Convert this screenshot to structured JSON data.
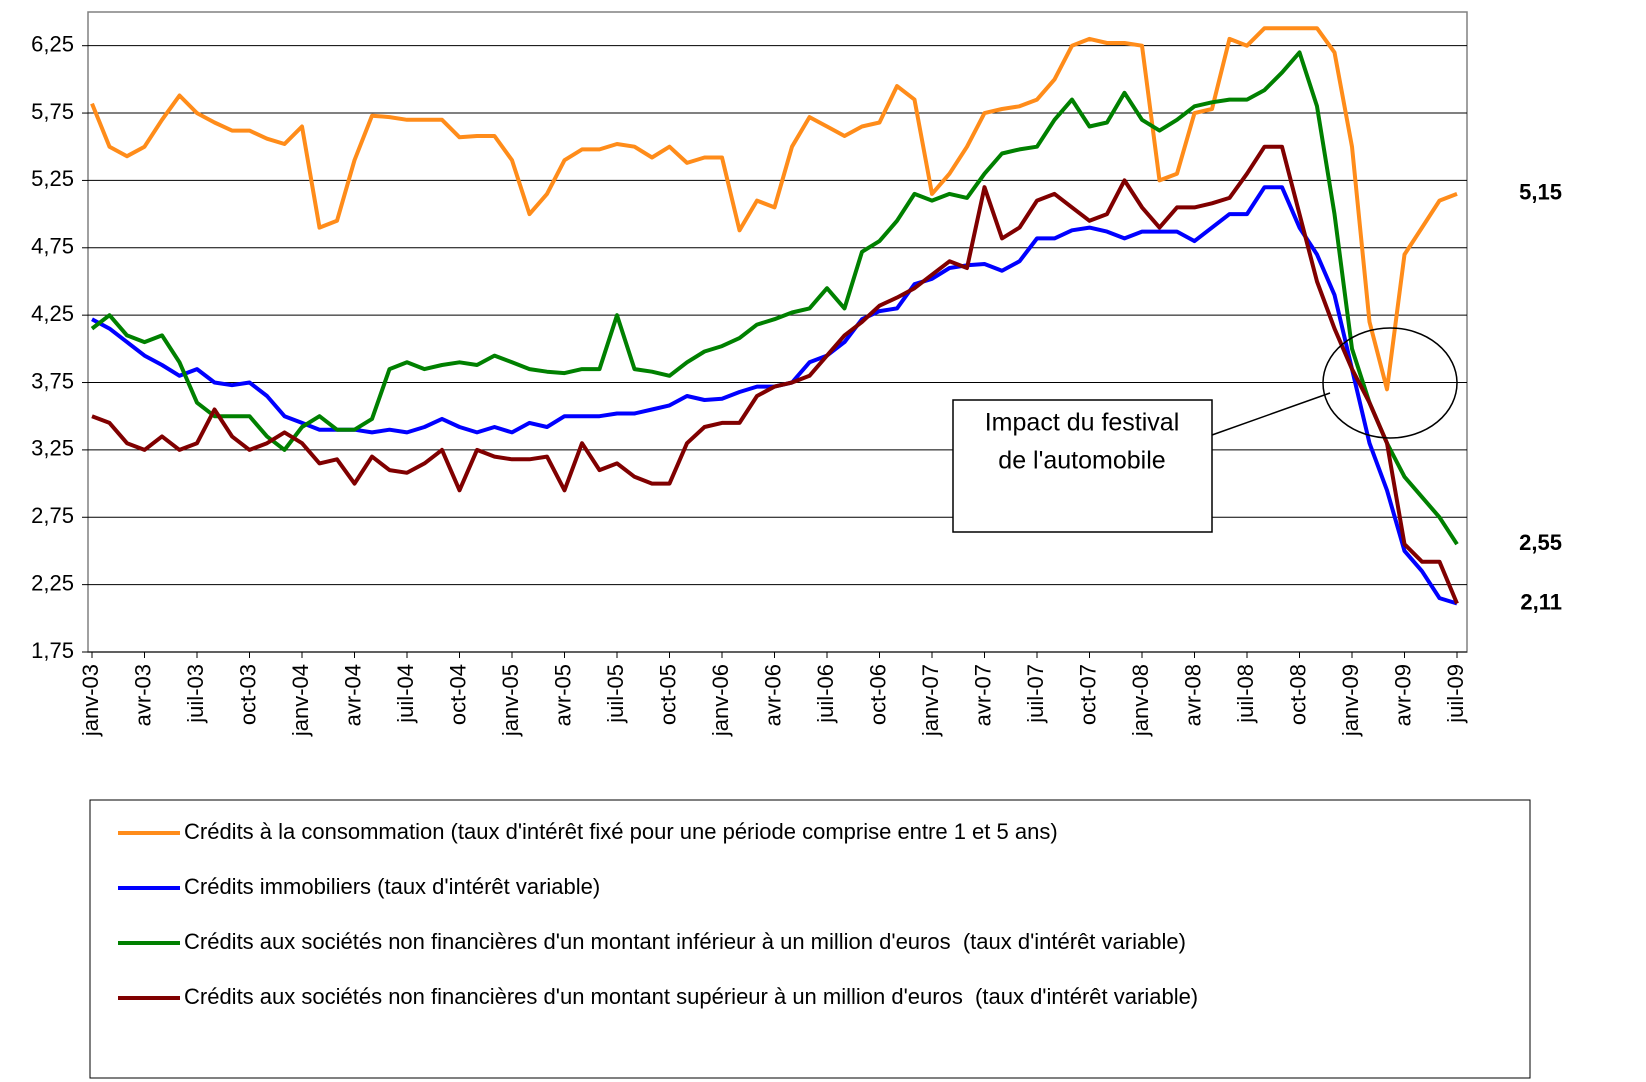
{
  "chart_data": {
    "type": "line",
    "categories": [
      "janv-03",
      null,
      null,
      "avr-03",
      null,
      null,
      "juil-03",
      null,
      null,
      "oct-03",
      null,
      null,
      "janv-04",
      null,
      null,
      "avr-04",
      null,
      null,
      "juil-04",
      null,
      null,
      "oct-04",
      null,
      null,
      "janv-05",
      null,
      null,
      "avr-05",
      null,
      null,
      "juil-05",
      null,
      null,
      "oct-05",
      null,
      null,
      "janv-06",
      null,
      null,
      "avr-06",
      null,
      null,
      "juil-06",
      null,
      null,
      "oct-06",
      null,
      null,
      "janv-07",
      null,
      null,
      "avr-07",
      null,
      null,
      "juil-07",
      null,
      null,
      "oct-07",
      null,
      null,
      "janv-08",
      null,
      null,
      "avr-08",
      null,
      null,
      "juil-08",
      null,
      null,
      "oct-08",
      null,
      null,
      "janv-09",
      null,
      null,
      "avr-09",
      null,
      null,
      "juil-09"
    ],
    "ylim": [
      1.75,
      6.5
    ],
    "yticks": [
      {
        "value": 1.75,
        "label": "1,75"
      },
      {
        "value": 2.25,
        "label": "2,25"
      },
      {
        "value": 2.75,
        "label": "2,75"
      },
      {
        "value": 3.25,
        "label": "3,25"
      },
      {
        "value": 3.75,
        "label": "3,75"
      },
      {
        "value": 4.25,
        "label": "4,25"
      },
      {
        "value": 4.75,
        "label": "4,75"
      },
      {
        "value": 5.25,
        "label": "5,25"
      },
      {
        "value": 5.75,
        "label": "5,75"
      },
      {
        "value": 6.25,
        "label": "6,25"
      }
    ],
    "grid": true,
    "legend": "bottom",
    "annotation": [
      "Impact du festival",
      "de l'automobile"
    ],
    "series": [
      {
        "name": "Crédits à la consommation (taux d'intérêt fixé pour une période comprise entre 1 et 5 ans)",
        "color": "#ff8c1a",
        "values": [
          5.82,
          5.5,
          5.43,
          5.5,
          5.7,
          5.88,
          5.75,
          5.68,
          5.62,
          5.62,
          5.56,
          5.52,
          5.65,
          4.9,
          4.95,
          5.4,
          5.73,
          5.72,
          5.7,
          5.7,
          5.7,
          5.57,
          5.58,
          5.58,
          5.4,
          5.0,
          5.15,
          5.4,
          5.48,
          5.48,
          5.52,
          5.5,
          5.42,
          5.5,
          5.38,
          5.42,
          5.42,
          4.88,
          5.1,
          5.05,
          5.5,
          5.72,
          5.65,
          5.58,
          5.65,
          5.68,
          5.95,
          5.85,
          5.15,
          5.3,
          5.5,
          5.75,
          5.78,
          5.8,
          5.85,
          6.0,
          6.25,
          6.3,
          6.27,
          6.27,
          6.25,
          5.25,
          5.3,
          5.75,
          5.78,
          6.3,
          6.25,
          6.38,
          6.38,
          6.38,
          6.38,
          6.2,
          5.5,
          4.2,
          3.7,
          4.7,
          4.9,
          5.1,
          5.15
        ],
        "value_labels": [
          null,
          null,
          null,
          null,
          null,
          null,
          null,
          null,
          null,
          null,
          null,
          null,
          null,
          null,
          null,
          null,
          null,
          null,
          null,
          null,
          null,
          null,
          null,
          null,
          null,
          null,
          null,
          null,
          null,
          null,
          null,
          null,
          null,
          null,
          null,
          null,
          null,
          null,
          null,
          null,
          null,
          null,
          null,
          null,
          null,
          null,
          null,
          null,
          null,
          null,
          null,
          null,
          null,
          null,
          null,
          null,
          null,
          null,
          null,
          null,
          null,
          null,
          null,
          null,
          null,
          null,
          null,
          null,
          null,
          null,
          null,
          null,
          null,
          null,
          null,
          null,
          null,
          null,
          "5,15"
        ]
      },
      {
        "name": "Crédits immobiliers (taux d'intérêt variable)",
        "color": "#0000ff",
        "values": [
          4.22,
          4.15,
          4.05,
          3.95,
          3.88,
          3.8,
          3.85,
          3.75,
          3.73,
          3.75,
          3.65,
          3.5,
          3.45,
          3.4,
          3.4,
          3.4,
          3.38,
          3.4,
          3.38,
          3.42,
          3.48,
          3.42,
          3.38,
          3.42,
          3.38,
          3.45,
          3.42,
          3.5,
          3.5,
          3.5,
          3.52,
          3.52,
          3.55,
          3.58,
          3.65,
          3.62,
          3.63,
          3.68,
          3.72,
          3.72,
          3.75,
          3.9,
          3.95,
          4.05,
          4.22,
          4.28,
          4.3,
          4.48,
          4.52,
          4.6,
          4.62,
          4.63,
          4.58,
          4.65,
          4.82,
          4.82,
          4.88,
          4.9,
          4.87,
          4.82,
          4.87,
          4.87,
          4.87,
          4.8,
          4.9,
          5.0,
          5.0,
          5.2,
          5.2,
          4.9,
          4.7,
          4.4,
          3.85,
          3.3,
          2.95,
          2.5,
          2.35,
          2.15,
          2.11
        ],
        "value_labels": [
          null,
          null,
          null,
          null,
          null,
          null,
          null,
          null,
          null,
          null,
          null,
          null,
          null,
          null,
          null,
          null,
          null,
          null,
          null,
          null,
          null,
          null,
          null,
          null,
          null,
          null,
          null,
          null,
          null,
          null,
          null,
          null,
          null,
          null,
          null,
          null,
          null,
          null,
          null,
          null,
          null,
          null,
          null,
          null,
          null,
          null,
          null,
          null,
          null,
          null,
          null,
          null,
          null,
          null,
          null,
          null,
          null,
          null,
          null,
          null,
          null,
          null,
          null,
          null,
          null,
          null,
          null,
          null,
          null,
          null,
          null,
          null,
          null,
          null,
          null,
          null,
          null,
          null,
          "2,11"
        ]
      },
      {
        "name": "Crédits aux sociétés non financières d'un montant inférieur à un million d'euros  (taux d'intérêt variable)",
        "color": "#008000",
        "values": [
          4.15,
          4.25,
          4.1,
          4.05,
          4.1,
          3.9,
          3.6,
          3.5,
          3.5,
          3.5,
          3.35,
          3.25,
          3.42,
          3.5,
          3.4,
          3.4,
          3.48,
          3.85,
          3.9,
          3.85,
          3.88,
          3.9,
          3.88,
          3.95,
          3.9,
          3.85,
          3.83,
          3.82,
          3.85,
          3.85,
          4.25,
          3.85,
          3.83,
          3.8,
          3.9,
          3.98,
          4.02,
          4.08,
          4.18,
          4.22,
          4.27,
          4.3,
          4.45,
          4.3,
          4.72,
          4.8,
          4.95,
          5.15,
          5.1,
          5.15,
          5.12,
          5.3,
          5.45,
          5.48,
          5.5,
          5.7,
          5.85,
          5.65,
          5.68,
          5.9,
          5.7,
          5.62,
          5.7,
          5.8,
          5.83,
          5.85,
          5.85,
          5.92,
          6.05,
          6.2,
          5.8,
          5.0,
          4.0,
          3.6,
          3.3,
          3.05,
          2.9,
          2.75,
          2.55
        ],
        "value_labels": [
          null,
          null,
          null,
          null,
          null,
          null,
          null,
          null,
          null,
          null,
          null,
          null,
          null,
          null,
          null,
          null,
          null,
          null,
          null,
          null,
          null,
          null,
          null,
          null,
          null,
          null,
          null,
          null,
          null,
          null,
          null,
          null,
          null,
          null,
          null,
          null,
          null,
          null,
          null,
          null,
          null,
          null,
          null,
          null,
          null,
          null,
          null,
          null,
          null,
          null,
          null,
          null,
          null,
          null,
          null,
          null,
          null,
          null,
          null,
          null,
          null,
          null,
          null,
          null,
          null,
          null,
          null,
          null,
          null,
          null,
          null,
          null,
          null,
          null,
          null,
          null,
          null,
          null,
          "2,55"
        ]
      },
      {
        "name": "Crédits aux sociétés non financières d'un montant supérieur à un million d'euros  (taux d'intérêt variable)",
        "color": "#800000",
        "values": [
          3.5,
          3.45,
          3.3,
          3.25,
          3.35,
          3.25,
          3.3,
          3.55,
          3.35,
          3.25,
          3.3,
          3.38,
          3.3,
          3.15,
          3.18,
          3.0,
          3.2,
          3.1,
          3.08,
          3.15,
          3.25,
          2.95,
          3.25,
          3.2,
          3.18,
          3.18,
          3.2,
          2.95,
          3.3,
          3.1,
          3.15,
          3.05,
          3.0,
          3.0,
          3.3,
          3.42,
          3.45,
          3.45,
          3.65,
          3.72,
          3.75,
          3.8,
          3.95,
          4.1,
          4.2,
          4.32,
          4.38,
          4.45,
          4.55,
          4.65,
          4.6,
          5.2,
          4.82,
          4.9,
          5.1,
          5.15,
          5.05,
          4.95,
          5.0,
          5.25,
          5.05,
          4.9,
          5.05,
          5.05,
          5.08,
          5.12,
          5.3,
          5.5,
          5.5,
          5.0,
          4.5,
          4.15,
          3.85,
          3.6,
          3.3,
          2.55,
          2.42,
          2.42,
          2.11
        ]
      }
    ]
  }
}
